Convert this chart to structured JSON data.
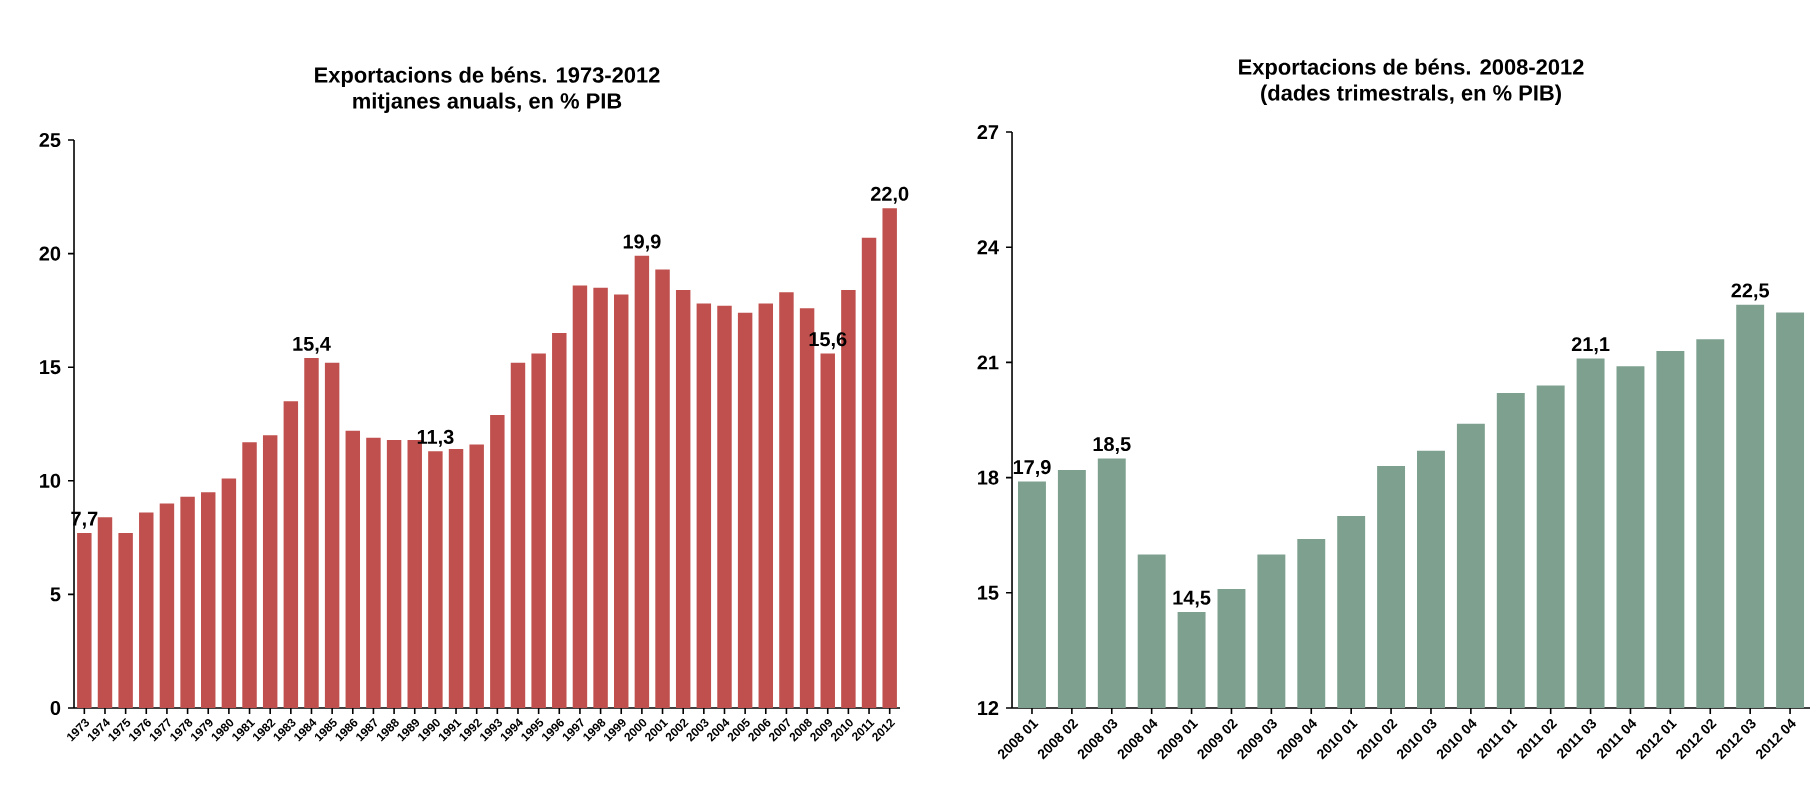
{
  "chart_data": [
    {
      "type": "bar",
      "title": "Exportacions de béns. 1973-2012",
      "subtitle": "mitjanes anuals, en % PIB",
      "categories": [
        "1973",
        "1974",
        "1975",
        "1976",
        "1977",
        "1978",
        "1979",
        "1980",
        "1981",
        "1982",
        "1983",
        "1984",
        "1985",
        "1986",
        "1987",
        "1988",
        "1989",
        "1990",
        "1991",
        "1992",
        "1993",
        "1994",
        "1995",
        "1996",
        "1997",
        "1998",
        "1999",
        "2000",
        "2001",
        "2002",
        "2003",
        "2004",
        "2005",
        "2006",
        "2007",
        "2008",
        "2009",
        "2010",
        "2011",
        "2012"
      ],
      "values": [
        7.7,
        8.4,
        7.7,
        8.6,
        9.0,
        9.3,
        9.5,
        10.1,
        11.7,
        12.0,
        13.5,
        15.4,
        15.2,
        12.2,
        11.9,
        11.8,
        11.8,
        11.3,
        11.4,
        11.6,
        12.9,
        15.2,
        15.6,
        16.5,
        18.6,
        18.5,
        18.2,
        19.9,
        19.3,
        18.4,
        17.8,
        17.7,
        17.4,
        17.8,
        18.3,
        17.6,
        15.6,
        18.4,
        20.7,
        22.0
      ],
      "value_labels": [
        "7,7",
        null,
        null,
        null,
        null,
        null,
        null,
        null,
        null,
        null,
        null,
        "15,4",
        null,
        null,
        null,
        null,
        null,
        "11,3",
        null,
        null,
        null,
        null,
        null,
        null,
        null,
        null,
        null,
        "19,9",
        null,
        null,
        null,
        null,
        null,
        null,
        null,
        null,
        "15,6",
        null,
        null,
        "22,0"
      ],
      "color": "#c0504d",
      "ylim": [
        0,
        25
      ],
      "yticks": [
        0,
        5,
        10,
        15,
        20,
        25
      ]
    },
    {
      "type": "bar",
      "title": "Exportacions de béns. 2008-2012",
      "subtitle": "(dades trimestrals, en % PIB)",
      "categories": [
        "2008 01",
        "2008 02",
        "2008 03",
        "2008 04",
        "2009 01",
        "2009 02",
        "2009 03",
        "2009 04",
        "2010 01",
        "2010 02",
        "2010 03",
        "2010 04",
        "2011 01",
        "2011 02",
        "2011 03",
        "2011 04",
        "2012 01",
        "2012 02",
        "2012 03",
        "2012 04"
      ],
      "values": [
        17.9,
        18.2,
        18.5,
        16.0,
        14.5,
        15.1,
        16.0,
        16.4,
        17.0,
        18.3,
        18.7,
        19.4,
        20.2,
        20.4,
        21.1,
        20.9,
        21.3,
        21.6,
        22.5,
        22.3
      ],
      "value_labels": [
        "17,9",
        null,
        "18,5",
        null,
        "14,5",
        null,
        null,
        null,
        null,
        null,
        null,
        null,
        null,
        null,
        "21,1",
        null,
        null,
        null,
        "22,5",
        null
      ],
      "color": "#7ea18f",
      "ylim": [
        12,
        27
      ],
      "yticks": [
        12,
        15,
        18,
        21,
        24,
        27
      ]
    }
  ]
}
